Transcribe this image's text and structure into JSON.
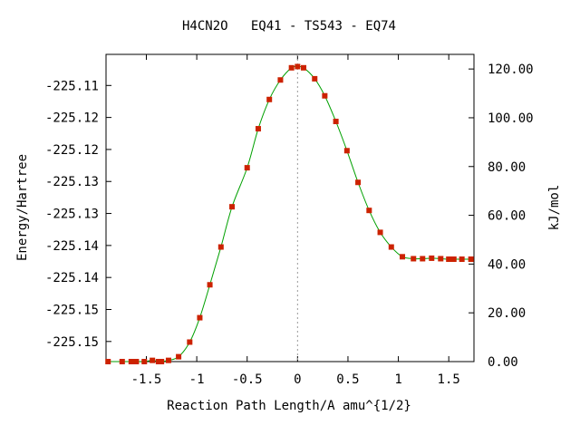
{
  "chart_data": {
    "type": "line",
    "title": "H4CN2O   EQ41 - TS543 - EQ74",
    "xlabel": "Reaction Path Length/A amu^{1/2}",
    "ylabel_left": "Energy/Hartree",
    "ylabel_right": "kJ/mol",
    "xlim": [
      -1.9,
      1.75
    ],
    "ylim_kjmol": [
      0,
      126
    ],
    "x_ticks": [
      -1.5,
      -1,
      -0.5,
      0,
      0.5,
      1,
      1.5
    ],
    "x_tick_labels": [
      "-1.5",
      "-1",
      "-0.5",
      "0",
      "0.5",
      "1",
      "1.5"
    ],
    "left_tick_labels": [
      "-225.11",
      "-225.12",
      "-225.12",
      "-225.13",
      "-225.13",
      "-225.14",
      "-225.14",
      "-225.15",
      "-225.15"
    ],
    "left_tick_kjmol": [
      113.25,
      100.125,
      87.0,
      73.875,
      60.75,
      47.625,
      34.5,
      21.375,
      8.25
    ],
    "right_ticks": [
      0,
      20,
      40,
      60,
      80,
      100,
      120
    ],
    "right_tick_labels": [
      "0.00",
      "20.00",
      "40.00",
      "60.00",
      "80.00",
      "100.00",
      "120.00"
    ],
    "ts_marker_x": 0,
    "grid": false,
    "colors": {
      "line": "#00a000",
      "points": "#cc2200",
      "ts_marker": "#999999"
    },
    "series": [
      {
        "x": [
          -1.88,
          -1.74,
          -1.65,
          -1.6,
          -1.52,
          -1.44,
          -1.38,
          -1.35,
          -1.28,
          -1.18,
          -1.07,
          -0.97,
          -0.87,
          -0.76,
          -0.65,
          -0.5,
          -0.39,
          -0.28,
          -0.17,
          -0.06,
          0.0,
          0.06,
          0.17,
          0.27,
          0.38,
          0.49,
          0.6,
          0.71,
          0.82,
          0.93,
          1.04,
          1.15,
          1.24,
          1.33,
          1.42,
          1.5,
          1.55,
          1.63,
          1.72
        ],
        "y": [
          0.0,
          0.0,
          0.0,
          0.0,
          0.0,
          0.5,
          0.0,
          0.0,
          0.5,
          2.0,
          8.0,
          18.0,
          31.5,
          47.0,
          63.5,
          79.5,
          95.5,
          107.5,
          115.5,
          120.5,
          121.0,
          120.5,
          116.0,
          109.0,
          98.5,
          86.5,
          73.5,
          62.0,
          53.0,
          47.0,
          43.0,
          42.2,
          42.2,
          42.4,
          42.2,
          42.0,
          42.0,
          42.0,
          42.0
        ]
      }
    ]
  }
}
